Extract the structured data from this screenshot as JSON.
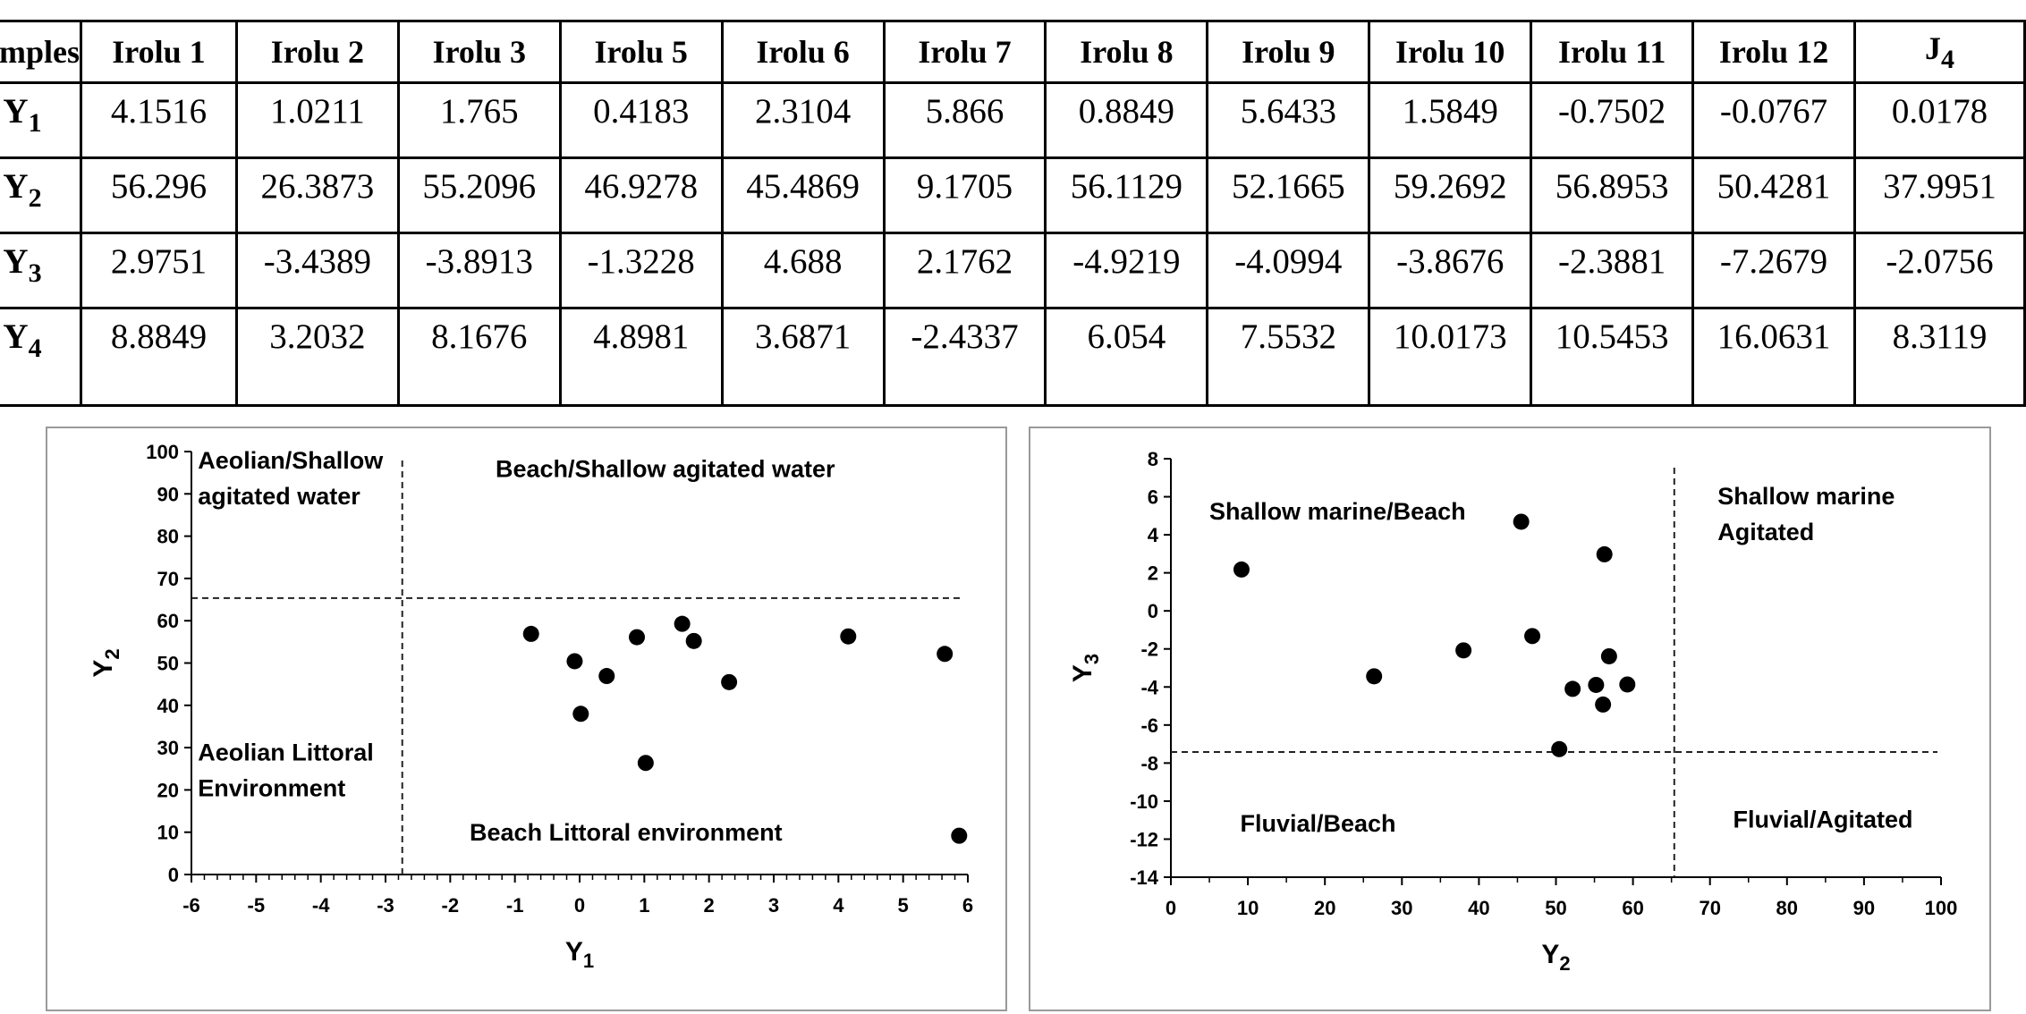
{
  "table": {
    "header": [
      "Samples",
      "Irolu 1",
      "Irolu 2",
      "Irolu 3",
      "Irolu 5",
      "Irolu 6",
      "Irolu 7",
      "Irolu 8",
      "Irolu 9",
      "Irolu 10",
      "Irolu 11",
      "Irolu 12",
      "J",
      "4"
    ],
    "rows": [
      {
        "label": "Y",
        "sub": "1",
        "values": [
          "4.1516",
          "1.0211",
          "1.765",
          "0.4183",
          "2.3104",
          "5.866",
          "0.8849",
          "5.6433",
          "1.5849",
          "-0.7502",
          "-0.0767",
          "0.0178"
        ]
      },
      {
        "label": "Y",
        "sub": "2",
        "values": [
          "56.296",
          "26.3873",
          "55.2096",
          "46.9278",
          "45.4869",
          "9.1705",
          "56.1129",
          "52.1665",
          "59.2692",
          "56.8953",
          "50.4281",
          "37.9951"
        ]
      },
      {
        "label": "Y",
        "sub": "3",
        "values": [
          "2.9751",
          "-3.4389",
          "-3.8913",
          "-1.3228",
          "4.688",
          "2.1762",
          "-4.9219",
          "-4.0994",
          "-3.8676",
          "-2.3881",
          "-7.2679",
          "-2.0756"
        ]
      },
      {
        "label": "Y",
        "sub": "4",
        "values": [
          "8.8849",
          "3.2032",
          "8.1676",
          "4.8981",
          "3.6871",
          "-2.4337",
          "6.054",
          "7.5532",
          "10.0173",
          "10.5453",
          "16.0631",
          "8.3119"
        ]
      }
    ]
  },
  "chart_data": [
    {
      "type": "scatter",
      "title": "",
      "xlabel": "Y",
      "xlabel_sub": "1",
      "ylabel": "Y",
      "ylabel_sub": "2",
      "xlim": [
        -6,
        6
      ],
      "ylim": [
        0,
        100
      ],
      "xticks": [
        -6,
        -5,
        -4,
        -3,
        -2,
        -1,
        0,
        1,
        2,
        3,
        4,
        5,
        6
      ],
      "yticks": [
        0,
        10,
        20,
        30,
        40,
        50,
        60,
        70,
        80,
        90,
        100
      ],
      "x": [
        4.1516,
        1.0211,
        1.765,
        0.4183,
        2.3104,
        5.866,
        0.8849,
        5.6433,
        1.5849,
        -0.7502,
        -0.0767,
        0.0178
      ],
      "y": [
        56.296,
        26.3873,
        55.2096,
        46.9278,
        45.4869,
        9.1705,
        56.1129,
        52.1665,
        59.2692,
        56.8953,
        50.4281,
        37.9951
      ],
      "threshold_x": -2.7411,
      "threshold_y": 65.365,
      "regions": [
        {
          "lines": [
            "Aeolian/Shallow",
            "agitated water"
          ],
          "anchor": [
            -5.9,
            96
          ]
        },
        {
          "lines": [
            "Beach/Shallow  agitated water"
          ],
          "anchor": [
            -1.3,
            94
          ]
        },
        {
          "lines": [
            "Aeolian Littoral",
            "Environment"
          ],
          "anchor": [
            -5.9,
            27
          ]
        },
        {
          "lines": [
            "Beach Littoral environment"
          ],
          "anchor": [
            -1.7,
            8
          ]
        }
      ]
    },
    {
      "type": "scatter",
      "title": "",
      "xlabel": "Y",
      "xlabel_sub": "2",
      "ylabel": "Y",
      "ylabel_sub": "3",
      "xlim": [
        0,
        100
      ],
      "ylim": [
        -14,
        8
      ],
      "xticks": [
        0,
        10,
        20,
        30,
        40,
        50,
        60,
        70,
        80,
        90,
        100
      ],
      "yticks": [
        -14,
        -12,
        -10,
        -8,
        -6,
        -4,
        -2,
        0,
        2,
        4,
        6,
        8
      ],
      "x": [
        56.296,
        26.3873,
        55.2096,
        46.9278,
        45.4869,
        9.1705,
        56.1129,
        52.1665,
        59.2692,
        56.8953,
        50.4281,
        37.9951
      ],
      "y": [
        2.9751,
        -3.4389,
        -3.8913,
        -1.3228,
        4.688,
        2.1762,
        -4.9219,
        -4.0994,
        -3.8676,
        -2.3881,
        -7.2679,
        -2.0756
      ],
      "threshold_x": 65.365,
      "threshold_y": -7.419,
      "regions": [
        {
          "lines": [
            "Shallow marine/Beach"
          ],
          "anchor": [
            5,
            4.8
          ]
        },
        {
          "lines": [
            "Shallow marine",
            "Agitated"
          ],
          "anchor": [
            71,
            5.6
          ]
        },
        {
          "lines": [
            "Fluvial/Beach"
          ],
          "anchor": [
            9,
            -11.6
          ]
        },
        {
          "lines": [
            "Fluvial/Agitated"
          ],
          "anchor": [
            73,
            -11.4
          ]
        }
      ]
    }
  ],
  "colors": {
    "marker": "#000000",
    "frame": "#9a9a9a",
    "axis": "#000000",
    "dash": "#222222"
  }
}
